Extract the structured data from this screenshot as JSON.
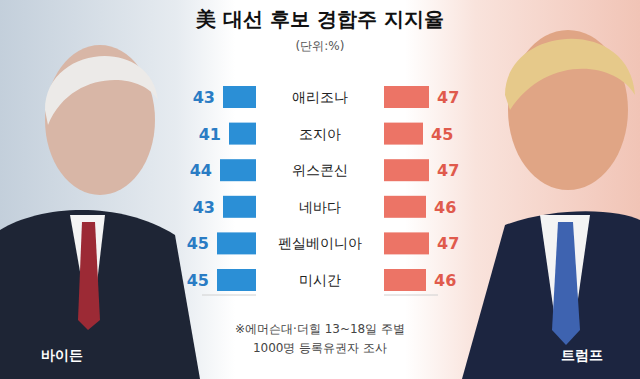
{
  "chart_data": {
    "type": "bar",
    "orientation": "horizontal",
    "title": "美 대선 후보 경합주 지지율",
    "subtitle": "(단위:%)",
    "categories": [
      "애리조나",
      "조지아",
      "위스콘신",
      "네바다",
      "펜실베이니아",
      "미시간"
    ],
    "series": [
      {
        "name": "바이든",
        "color": "#2b8fd6",
        "values": [
          43,
          41,
          44,
          43,
          45,
          45
        ]
      },
      {
        "name": "트럼프",
        "color": "#ec7466",
        "values": [
          47,
          45,
          47,
          46,
          47,
          46
        ]
      }
    ],
    "xlim": [
      32,
      50
    ],
    "tick_labels": false,
    "data_labels": true,
    "grid": false,
    "annotations": [
      "※에머슨대·더힐 13~18일 주별",
      "1000명 등록유권자 조사"
    ]
  }
}
